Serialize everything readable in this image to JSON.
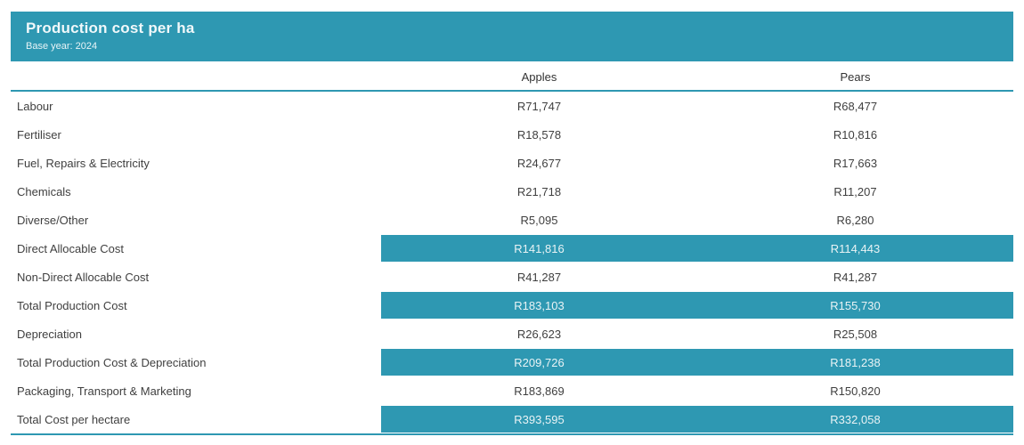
{
  "header": {
    "title": "Production cost per ha",
    "subtitle": "Base year: 2024"
  },
  "columns": [
    "Apples",
    "Pears"
  ],
  "rows": [
    {
      "label": "Labour",
      "apples": "R71,747",
      "pears": "R68,477",
      "highlighted": false
    },
    {
      "label": "Fertiliser",
      "apples": "R18,578",
      "pears": "R10,816",
      "highlighted": false
    },
    {
      "label": "Fuel, Repairs & Electricity",
      "apples": "R24,677",
      "pears": "R17,663",
      "highlighted": false
    },
    {
      "label": "Chemicals",
      "apples": "R21,718",
      "pears": "R11,207",
      "highlighted": false
    },
    {
      "label": "Diverse/Other",
      "apples": "R5,095",
      "pears": "R6,280",
      "highlighted": false
    },
    {
      "label": "Direct Allocable Cost",
      "apples": "R141,816",
      "pears": "R114,443",
      "highlighted": true
    },
    {
      "label": "Non-Direct Allocable Cost",
      "apples": "R41,287",
      "pears": "R41,287",
      "highlighted": false
    },
    {
      "label": "Total Production Cost",
      "apples": "R183,103",
      "pears": "R155,730",
      "highlighted": true
    },
    {
      "label": "Depreciation",
      "apples": "R26,623",
      "pears": "R25,508",
      "highlighted": false
    },
    {
      "label": "Total Production Cost & Depreciation",
      "apples": "R209,726",
      "pears": "R181,238",
      "highlighted": true
    },
    {
      "label": "Packaging, Transport & Marketing",
      "apples": "R183,869",
      "pears": "R150,820",
      "highlighted": false
    },
    {
      "label": "Total Cost per hectare",
      "apples": "R393,595",
      "pears": "R332,058",
      "highlighted": true
    }
  ],
  "colors": {
    "accent_teal": "#2e98b2",
    "text_dark": "#3f3f3f",
    "text_on_accent": "#e9f3f5"
  },
  "chart_data": {
    "type": "table",
    "title": "Production cost per ha",
    "subtitle": "Base year: 2024",
    "columns": [
      "Apples",
      "Pears"
    ],
    "categories": [
      "Labour",
      "Fertiliser",
      "Fuel, Repairs & Electricity",
      "Chemicals",
      "Diverse/Other",
      "Direct Allocable Cost",
      "Non-Direct Allocable Cost",
      "Total Production Cost",
      "Depreciation",
      "Total Production Cost & Depreciation",
      "Packaging, Transport & Marketing",
      "Total Cost per hectare"
    ],
    "series": [
      {
        "name": "Apples",
        "values": [
          71747,
          18578,
          24677,
          21718,
          5095,
          141816,
          41287,
          183103,
          26623,
          209726,
          183869,
          393595
        ]
      },
      {
        "name": "Pears",
        "values": [
          68477,
          10816,
          17663,
          11207,
          6280,
          114443,
          41287,
          155730,
          25508,
          181238,
          150820,
          332058
        ]
      }
    ],
    "highlighted_rows": [
      "Direct Allocable Cost",
      "Total Production Cost",
      "Total Production Cost & Depreciation",
      "Total Cost per hectare"
    ],
    "currency_symbol": "R"
  }
}
